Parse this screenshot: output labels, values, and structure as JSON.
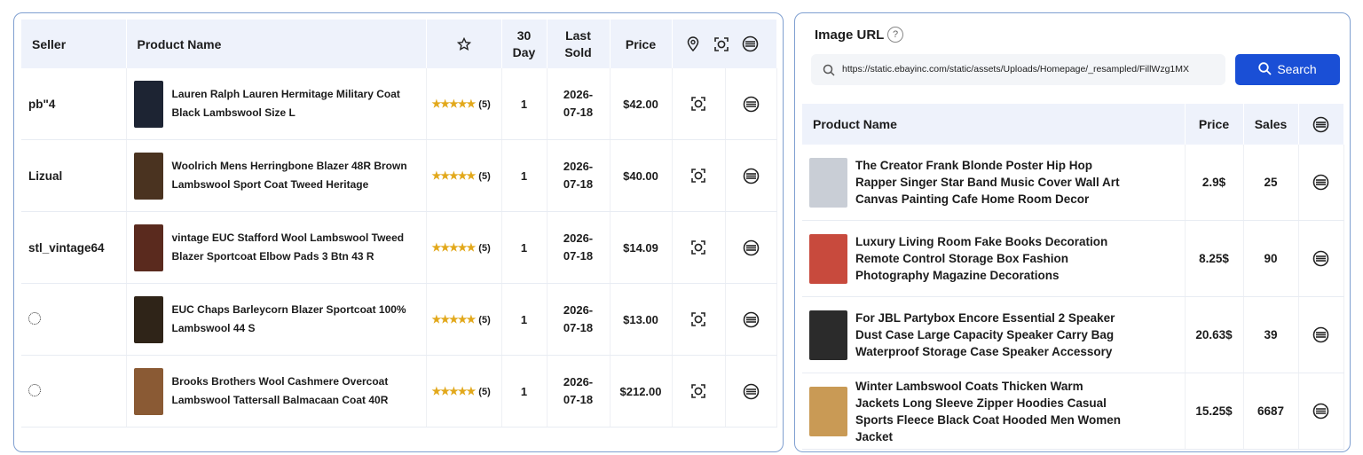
{
  "left_table": {
    "headers": {
      "seller": "Seller",
      "product": "Product Name",
      "days30": "30 Day",
      "last_sold": "Last Sold",
      "price": "Price"
    },
    "rows": [
      {
        "seller": "pb\"4",
        "product": "Lauren Ralph Lauren Hermitage Military Coat Black Lambswool Size L",
        "rating": "(5)",
        "days30": "1",
        "last_sold": "2026-07-18",
        "price": "$42.00"
      },
      {
        "seller": "Lizual",
        "product": "Woolrich Mens Herringbone Blazer 48R Brown Lambswool Sport Coat Tweed Heritage",
        "rating": "(5)",
        "days30": "1",
        "last_sold": "2026-07-18",
        "price": "$40.00"
      },
      {
        "seller": "stl_vintage64",
        "product": "vintage EUC Stafford Wool Lambswool Tweed Blazer Sportcoat Elbow Pads 3 Btn 43 R",
        "rating": "(5)",
        "days30": "1",
        "last_sold": "2026-07-18",
        "price": "$14.09"
      },
      {
        "product": "EUC Chaps Barleycorn Blazer Sportcoat 100% Lambswool 44 S",
        "rating": "(5)",
        "days30": "1",
        "last_sold": "2026-07-18",
        "price": "$13.00"
      },
      {
        "product": "Brooks Brothers Wool Cashmere Overcoat Lambswool Tattersall Balmacaan Coat 40R",
        "rating": "(5)",
        "days30": "1",
        "last_sold": "2026-07-18",
        "price": "$212.00"
      }
    ]
  },
  "image_search": {
    "label": "Image URL",
    "help": "?",
    "url": "https://static.ebayinc.com/static/assets/Uploads/Homepage/_resampled/FillWzg1MX",
    "button": "Search"
  },
  "right_table": {
    "headers": {
      "product": "Product Name",
      "price": "Price",
      "sales": "Sales"
    },
    "rows": [
      {
        "product": "The Creator Frank Blonde Poster Hip Hop Rapper Singer Star Band Music Cover Wall Art Canvas Painting Cafe Home Room Decor",
        "price": "2.9$",
        "sales": "25"
      },
      {
        "product": "Luxury Living Room Fake Books Decoration Remote Control Storage Box Fashion Photography Magazine Decorations",
        "price": "8.25$",
        "sales": "90"
      },
      {
        "product": "For JBL Partybox Encore Essential 2 Speaker Dust Case Large Capacity Speaker Carry Bag Waterproof Storage Case Speaker Accessory",
        "price": "20.63$",
        "sales": "39"
      },
      {
        "product": "Winter Lambswool Coats Thicken Warm Jackets Long Sleeve Zipper Hoodies Casual Sports Fleece Black Coat Hooded Men Women Jacket",
        "price": "15.25$",
        "sales": "6687"
      }
    ]
  }
}
